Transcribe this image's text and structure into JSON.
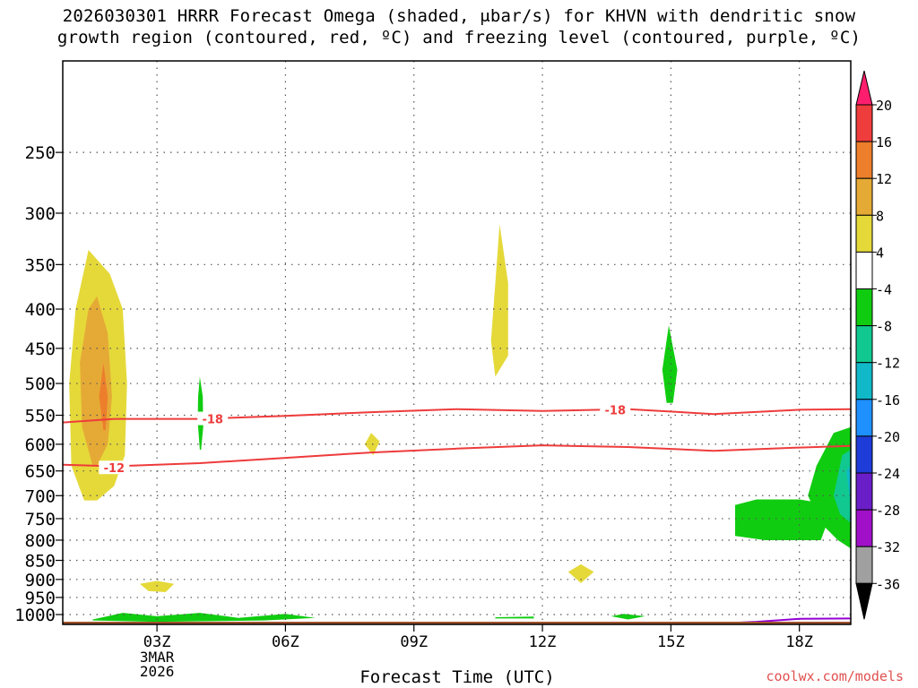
{
  "title_line1": "2026030301 HRRR Forecast Omega (shaded, μbar/s) for KHVN with dendritic snow",
  "title_line2": "growth region (contoured, red, ºC) and freezing level (contoured, purple, ºC)",
  "credit": "coolwx.com/models",
  "colors": {
    "ground": "#a0522d",
    "dgz_line": "#ee3b3b",
    "freezing_line": "#9400d3",
    "grid": "#555555"
  },
  "chart_data": {
    "type": "heatmap",
    "xlabel": "Forecast Time (UTC)",
    "x_range_hours": [
      0.8,
      19.2
    ],
    "y_range_hPa": [
      190,
      1030
    ],
    "y_scale": "log",
    "grid": true,
    "x_ticks": [
      {
        "hour": 3,
        "label": "03Z",
        "sub1": "3MAR",
        "sub2": "2026"
      },
      {
        "hour": 6,
        "label": "06Z"
      },
      {
        "hour": 9,
        "label": "09Z"
      },
      {
        "hour": 12,
        "label": "12Z"
      },
      {
        "hour": 15,
        "label": "15Z"
      },
      {
        "hour": 18,
        "label": "18Z"
      }
    ],
    "y_ticks": [
      250,
      300,
      350,
      400,
      450,
      500,
      550,
      600,
      650,
      700,
      750,
      800,
      850,
      900,
      950,
      1000
    ],
    "colorbar": {
      "labels": [
        20,
        16,
        12,
        8,
        4,
        -4,
        -8,
        -12,
        -16,
        -20,
        -24,
        -28,
        -32,
        -36
      ],
      "colors": [
        "#ff1e6e",
        "#ef3c3c",
        "#ec7e2c",
        "#e5aa35",
        "#e5d93a",
        "#ffffff",
        "#10cc10",
        "#10c890",
        "#10b8c8",
        "#1e90ff",
        "#1e3cd8",
        "#6a1ec8",
        "#a010c8",
        "#a0a0a0",
        "#000000"
      ]
    },
    "contours": [
      {
        "label": "-18",
        "label_hour": 4.3,
        "label_hPa": 556,
        "label2_hour": 13.7,
        "label2_hPa": 541,
        "points": [
          [
            0.8,
            562
          ],
          [
            2,
            556
          ],
          [
            4,
            556
          ],
          [
            6,
            551
          ],
          [
            8,
            545
          ],
          [
            10,
            540
          ],
          [
            12,
            543
          ],
          [
            14,
            540
          ],
          [
            16,
            548
          ],
          [
            18,
            541
          ],
          [
            19.2,
            540
          ]
        ]
      },
      {
        "label": "-12",
        "label_hour": 2.0,
        "label_hPa": 644,
        "points": [
          [
            0.8,
            638
          ],
          [
            2,
            641
          ],
          [
            4,
            635
          ],
          [
            6,
            625
          ],
          [
            8,
            615
          ],
          [
            10,
            608
          ],
          [
            12,
            602
          ],
          [
            14,
            605
          ],
          [
            16,
            612
          ],
          [
            18,
            606
          ],
          [
            19.2,
            603
          ]
        ]
      }
    ],
    "freezing_level": {
      "points": [
        [
          16.0,
          1028
        ],
        [
          17.0,
          1022
        ],
        [
          18.0,
          1013
        ],
        [
          19.2,
          1012
        ]
      ]
    },
    "ground_hPa": 1030,
    "omega_regions": [
      {
        "value": 4,
        "points": [
          [
            1.3,
            710
          ],
          [
            1.0,
            640
          ],
          [
            0.95,
            500
          ],
          [
            1.1,
            400
          ],
          [
            1.4,
            335
          ],
          [
            1.9,
            360
          ],
          [
            2.2,
            400
          ],
          [
            2.3,
            500
          ],
          [
            2.25,
            620
          ],
          [
            2.0,
            680
          ],
          [
            1.6,
            710
          ]
        ]
      },
      {
        "value": 8,
        "points": [
          [
            1.5,
            640
          ],
          [
            1.25,
            570
          ],
          [
            1.2,
            470
          ],
          [
            1.4,
            400
          ],
          [
            1.6,
            385
          ],
          [
            1.85,
            430
          ],
          [
            1.95,
            520
          ],
          [
            1.85,
            600
          ],
          [
            1.6,
            640
          ]
        ]
      },
      {
        "value": 12,
        "points": [
          [
            1.75,
            575
          ],
          [
            1.65,
            520
          ],
          [
            1.75,
            470
          ],
          [
            1.85,
            520
          ],
          [
            1.8,
            575
          ]
        ]
      },
      {
        "value": 4,
        "points": [
          [
            2.6,
            912
          ],
          [
            3.0,
            904
          ],
          [
            3.4,
            912
          ],
          [
            3.2,
            935
          ],
          [
            2.8,
            932
          ]
        ]
      },
      {
        "value": -4,
        "points": [
          [
            4.0,
            610
          ],
          [
            3.95,
            560
          ],
          [
            3.96,
            520
          ],
          [
            4.0,
            490
          ],
          [
            4.07,
            520
          ],
          [
            4.08,
            570
          ],
          [
            4.03,
            610
          ]
        ]
      },
      {
        "value": 4,
        "points": [
          [
            7.85,
            600
          ],
          [
            8.0,
            580
          ],
          [
            8.2,
            595
          ],
          [
            8.05,
            620
          ]
        ]
      },
      {
        "value": 4,
        "points": [
          [
            10.9,
            490
          ],
          [
            10.8,
            440
          ],
          [
            10.9,
            370
          ],
          [
            11.0,
            310
          ],
          [
            11.2,
            370
          ],
          [
            11.2,
            460
          ]
        ]
      },
      {
        "value": 4,
        "points": [
          [
            12.6,
            880
          ],
          [
            12.9,
            860
          ],
          [
            13.2,
            880
          ],
          [
            12.9,
            910
          ]
        ]
      },
      {
        "value": -4,
        "points": [
          [
            14.9,
            530
          ],
          [
            14.8,
            480
          ],
          [
            14.95,
            420
          ],
          [
            15.15,
            480
          ],
          [
            15.05,
            530
          ]
        ]
      },
      {
        "value": -4,
        "points": [
          [
            16.5,
            790
          ],
          [
            16.5,
            720
          ],
          [
            17.0,
            708
          ],
          [
            18.0,
            708
          ],
          [
            18.8,
            720
          ],
          [
            18.5,
            800
          ],
          [
            17.2,
            800
          ]
        ]
      },
      {
        "value": -4,
        "points": [
          [
            18.2,
            700
          ],
          [
            18.4,
            640
          ],
          [
            18.8,
            580
          ],
          [
            19.2,
            570
          ],
          [
            19.2,
            820
          ],
          [
            18.9,
            800
          ],
          [
            18.5,
            760
          ]
        ]
      },
      {
        "value": -8,
        "points": [
          [
            18.8,
            700
          ],
          [
            19.0,
            620
          ],
          [
            19.2,
            610
          ],
          [
            19.2,
            760
          ],
          [
            18.95,
            740
          ]
        ]
      },
      {
        "value": -12,
        "points": [
          [
            19.1,
            650
          ],
          [
            19.2,
            640
          ],
          [
            19.2,
            720
          ]
        ]
      },
      {
        "value": -4,
        "points": [
          [
            1.5,
            1015
          ],
          [
            2.2,
            995
          ],
          [
            3.0,
            1005
          ],
          [
            4.0,
            995
          ],
          [
            4.9,
            1010
          ],
          [
            6.0,
            998
          ],
          [
            6.7,
            1010
          ],
          [
            5.5,
            1018
          ],
          [
            3.0,
            1022
          ],
          [
            1.5,
            1018
          ]
        ]
      },
      {
        "value": -4,
        "points": [
          [
            10.9,
            1008
          ],
          [
            11.8,
            1006
          ],
          [
            11.8,
            1012
          ],
          [
            10.9,
            1012
          ]
        ]
      },
      {
        "value": -4,
        "points": [
          [
            13.6,
            1005
          ],
          [
            13.9,
            998
          ],
          [
            14.4,
            1005
          ],
          [
            14.0,
            1015
          ]
        ]
      }
    ]
  }
}
